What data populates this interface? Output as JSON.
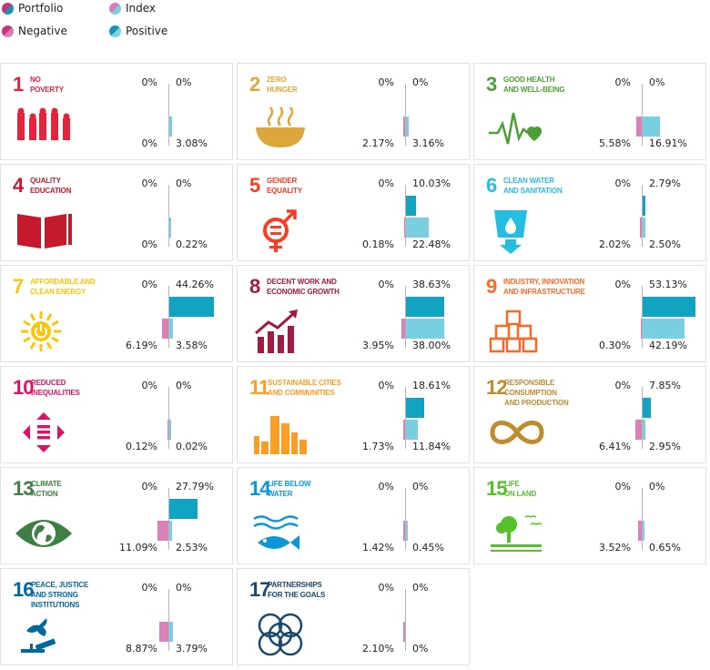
{
  "legend": [
    {
      "label": "Portfolio",
      "colors": [
        "#c7367d",
        "#1696b4"
      ]
    },
    {
      "label": "Index",
      "colors": [
        "#d67fb6",
        "#80cfe0"
      ]
    },
    {
      "label": "Negative",
      "colors": [
        "#c7367d",
        "#d67fb6"
      ]
    },
    {
      "label": "Positive",
      "colors": [
        "#1696b4",
        "#80cfe0"
      ]
    }
  ],
  "colors": {
    "portfolio_negative": "#c7367d",
    "portfolio_positive": "#12a3c2",
    "index_negative": "#dc80b8",
    "index_positive": "#79cfe0"
  },
  "chart_data": {
    "type": "bar",
    "categories": [
      "1",
      "2",
      "3",
      "4",
      "5",
      "6",
      "7",
      "8",
      "9",
      "10",
      "11",
      "12",
      "13",
      "14",
      "15",
      "16",
      "17"
    ],
    "titles": [
      [
        "NO",
        "POVERTY"
      ],
      [
        "ZERO",
        "HUNGER"
      ],
      [
        "GOOD HEALTH",
        "AND WELL-BEING"
      ],
      [
        "QUALITY",
        "EDUCATION"
      ],
      [
        "GENDER",
        "EQUALITY"
      ],
      [
        "CLEAN WATER",
        "AND SANITATION"
      ],
      [
        "AFFORDABLE AND",
        "CLEAN ENERGY"
      ],
      [
        "DECENT WORK AND",
        "ECONOMIC GROWTH"
      ],
      [
        "INDUSTRY, INNOVATION",
        "AND INFRASTRUCTURE"
      ],
      [
        "REDUCED",
        "INEQUALITIES"
      ],
      [
        "SUSTAINABLE CITIES",
        "AND COMMUNITIES"
      ],
      [
        "RESPONSIBLE",
        "CONSUMPTION",
        "AND PRODUCTION"
      ],
      [
        "CLIMATE",
        "ACTION"
      ],
      [
        "LIFE BELOW",
        "WATER"
      ],
      [
        "LIFE",
        "ON LAND"
      ],
      [
        "PEACE, JUSTICE",
        "AND STRONG",
        "INSTITUTIONS"
      ],
      [
        "PARTNERSHIPS",
        "FOR THE GOALS"
      ]
    ],
    "goal_colors": [
      "#e5243b",
      "#dda63a",
      "#4c9f38",
      "#c5192d",
      "#ff3a21",
      "#26bde2",
      "#fcc30b",
      "#a21942",
      "#fd6925",
      "#dd1367",
      "#fd9d24",
      "#bf8b2e",
      "#3f7e44",
      "#0a97d9",
      "#56c02b",
      "#00689d",
      "#19486a"
    ],
    "series": [
      {
        "name": "Portfolio",
        "negative": [
          0,
          0,
          0,
          0,
          0,
          0,
          0,
          0,
          0,
          0,
          0,
          0,
          0,
          0,
          0,
          0,
          0
        ],
        "positive": [
          0,
          0,
          0,
          0,
          10.03,
          2.79,
          44.26,
          38.63,
          53.13,
          0,
          18.61,
          7.85,
          27.79,
          0,
          0,
          0,
          0
        ]
      },
      {
        "name": "Index",
        "negative": [
          0,
          2.17,
          5.58,
          0,
          0.18,
          2.02,
          6.19,
          3.95,
          0.3,
          0.12,
          1.73,
          6.41,
          11.09,
          1.42,
          3.52,
          8.87,
          2.1
        ],
        "positive": [
          3.08,
          3.16,
          16.91,
          0.22,
          22.48,
          2.5,
          3.58,
          38.0,
          42.19,
          0.02,
          11.84,
          2.95,
          2.53,
          0.45,
          0.65,
          3.79,
          0
        ]
      }
    ],
    "labels": {
      "portfolio_negative": [
        "0%",
        "0%",
        "0%",
        "0%",
        "0%",
        "0%",
        "0%",
        "0%",
        "0%",
        "0%",
        "0%",
        "0%",
        "0%",
        "0%",
        "0%",
        "0%",
        "0%"
      ],
      "portfolio_positive": [
        "0%",
        "0%",
        "0%",
        "0%",
        "10.03%",
        "2.79%",
        "44.26%",
        "38.63%",
        "53.13%",
        "0%",
        "18.61%",
        "7.85%",
        "27.79%",
        "0%",
        "0%",
        "0%",
        "0%"
      ],
      "index_negative": [
        "0%",
        "2.17%",
        "5.58%",
        "0%",
        "0.18%",
        "2.02%",
        "6.19%",
        "3.95%",
        "0.30%",
        "0.12%",
        "1.73%",
        "6.41%",
        "11.09%",
        "1.42%",
        "3.52%",
        "8.87%",
        "2.10%"
      ],
      "index_positive": [
        "3.08%",
        "3.16%",
        "16.91%",
        "0.22%",
        "22.48%",
        "2.50%",
        "3.58%",
        "38.00%",
        "42.19%",
        "0.02%",
        "11.84%",
        "2.95%",
        "2.53%",
        "0.45%",
        "0.65%",
        "3.79%",
        "0%"
      ]
    },
    "icons": [
      "people-icon",
      "bowl-icon",
      "heartbeat-icon",
      "book-icon",
      "gender-icon",
      "water-glass-icon",
      "sun-power-icon",
      "growth-chart-icon",
      "cubes-icon",
      "equality-arrows-icon",
      "city-icon",
      "infinity-icon",
      "earth-eye-icon",
      "fish-icon",
      "tree-land-icon",
      "dove-gavel-icon",
      "rings-icon"
    ]
  }
}
